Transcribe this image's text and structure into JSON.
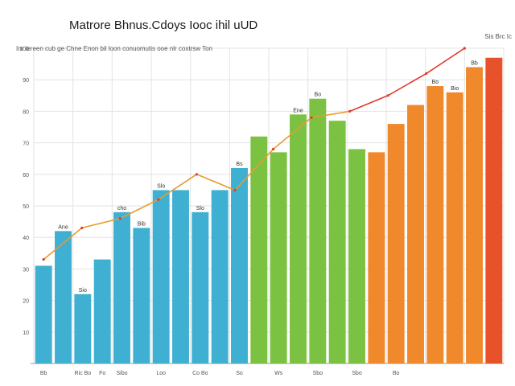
{
  "chart_data": {
    "type": "bar",
    "title": "Matrore Bhnus.Cdoys Iooc ihil uUD",
    "subtitle": "Inr iereen cub ge Chne Enon bil loon conuomutis ooe nlr coxtrsw Ton",
    "corner_label": "Sis Brc Ic",
    "xlabel": "",
    "ylabel": "",
    "ylim": [
      0,
      100
    ],
    "grid": true,
    "legend": "none",
    "y_ticks": [
      "",
      "10",
      "20",
      "30",
      "40",
      "50",
      "60",
      "70",
      "80",
      "90",
      "100"
    ],
    "categories": [
      "Bb",
      "",
      "Ric Bo",
      "Fo",
      "Sibo",
      "",
      "Loo",
      "",
      "Co Bo",
      "",
      "So",
      "",
      "Ws",
      "",
      "Sbo",
      "",
      "Sbo",
      "",
      "Bo",
      "",
      "",
      "",
      "",
      ""
    ],
    "values": [
      31,
      42,
      22,
      33,
      48,
      43,
      55,
      55,
      48,
      55,
      62,
      72,
      67,
      79,
      84,
      77,
      68,
      67,
      76,
      82,
      88,
      86,
      94,
      97
    ],
    "data_labels": [
      "",
      "Ane",
      "Sio",
      "",
      "cho",
      "Bib",
      "Slo",
      "",
      "Slo",
      "",
      "Bs",
      "",
      "",
      "Ene",
      "Bo",
      "",
      "",
      "",
      "",
      "",
      "Bo",
      "Bio",
      "Bb",
      ""
    ],
    "trend_line": [
      33,
      43,
      46,
      52,
      60,
      55,
      68,
      78,
      80,
      85,
      92,
      100
    ],
    "colors": {
      "blue": "#3fb0d2",
      "green": "#7cc242",
      "orange": "#f0892c",
      "red": "#e8522a",
      "trend": "#e99a2f",
      "trend_red": "#e03a2a"
    }
  }
}
